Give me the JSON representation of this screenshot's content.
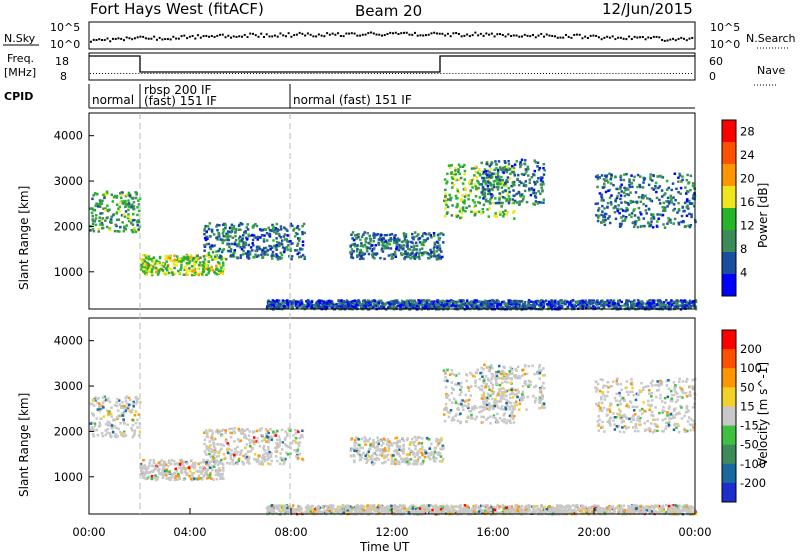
{
  "header": {
    "station": "Fort Hays West (fitACF)",
    "beam": "Beam 20",
    "date": "12/Jun/2015"
  },
  "noise_panel": {
    "left_label": "N.Sky",
    "left_ticks": [
      "10^5",
      "10^0"
    ],
    "right_ticks": [
      "10^5",
      "10^0"
    ],
    "right_label": "N.Search"
  },
  "freq_panel": {
    "label_line1": "Freq.",
    "label_line2": "[MHz]",
    "left_ticks": [
      "18",
      "8"
    ],
    "right_ticks": [
      "60",
      "0"
    ],
    "right_label": "Nave"
  },
  "cpid_panel": {
    "label": "CPID",
    "modes": [
      "normal",
      "rbsp 200 IF",
      "(fast) 151 IF",
      "normal (fast) 151 IF"
    ]
  },
  "power_panel": {
    "ylabel": "Slant Range [km]",
    "yticks": [
      "1000",
      "2000",
      "3000",
      "4000"
    ],
    "colorbar_label": "Power [dB]",
    "colorbar_ticks": [
      "4",
      "8",
      "12",
      "16",
      "20",
      "24",
      "28"
    ],
    "colors": [
      "#0000ff",
      "#1a4ea0",
      "#3c8c5a",
      "#28b428",
      "#f0e61e",
      "#ff9600",
      "#ff5000",
      "#ff0000"
    ]
  },
  "velocity_panel": {
    "ylabel": "Slant Range [km]",
    "yticks": [
      "1000",
      "2000",
      "3000",
      "4000"
    ],
    "colorbar_label": "Velocity [m s^-1]",
    "colorbar_ticks": [
      "200",
      "100",
      "50",
      "15",
      "-15",
      "-50",
      "-100",
      "-200"
    ],
    "colors": [
      "#1f2dcc",
      "#1a6aa0",
      "#3c8c5a",
      "#40c040",
      "#c8c8c8",
      "#f0d228",
      "#ff9600",
      "#ff5000",
      "#ff0000"
    ]
  },
  "x_axis": {
    "ticks": [
      "00:00",
      "04:00",
      "08:00",
      "12:00",
      "16:00",
      "20:00",
      "00:00"
    ],
    "label": "Time UT"
  },
  "chart_data": [
    {
      "type": "heatmap",
      "title": "Power",
      "xlabel": "Time UT",
      "ylabel": "Slant Range [km]",
      "xlim_hours": [
        0,
        24
      ],
      "ylim": [
        180,
        4500
      ],
      "colorbar": "Power [dB]",
      "colorbar_range": [
        0,
        30
      ],
      "echo_regions": [
        {
          "t": [
            0.0,
            2.0
          ],
          "range": [
            1900,
            2800
          ],
          "level": 12
        },
        {
          "t": [
            2.0,
            5.3
          ],
          "range": [
            950,
            1400
          ],
          "level": 16
        },
        {
          "t": [
            4.5,
            8.5
          ],
          "range": [
            1300,
            2100
          ],
          "level": 8
        },
        {
          "t": [
            10.3,
            14.0
          ],
          "range": [
            1300,
            1900
          ],
          "level": 8
        },
        {
          "t": [
            14.0,
            16.8
          ],
          "range": [
            2200,
            3400
          ],
          "level": 14
        },
        {
          "t": [
            15.5,
            18.0
          ],
          "range": [
            2500,
            3500
          ],
          "level": 8
        },
        {
          "t": [
            20.0,
            24.0
          ],
          "range": [
            2000,
            3200
          ],
          "level": 8
        },
        {
          "t": [
            7.0,
            24.0
          ],
          "range": [
            200,
            400
          ],
          "level": 6
        }
      ]
    },
    {
      "type": "heatmap",
      "title": "Velocity",
      "xlabel": "Time UT",
      "ylabel": "Slant Range [km]",
      "xlim_hours": [
        0,
        24
      ],
      "ylim": [
        180,
        4500
      ],
      "colorbar": "Velocity [m s^-1]",
      "colorbar_range": [
        -200,
        200
      ],
      "echo_regions": [
        {
          "t": [
            0.0,
            2.0
          ],
          "range": [
            1900,
            2800
          ],
          "level": 0
        },
        {
          "t": [
            2.0,
            5.3
          ],
          "range": [
            950,
            1400
          ],
          "level": -20
        },
        {
          "t": [
            4.5,
            8.5
          ],
          "range": [
            1300,
            2100
          ],
          "level": -20
        },
        {
          "t": [
            10.3,
            14.0
          ],
          "range": [
            1300,
            1900
          ],
          "level": 0
        },
        {
          "t": [
            14.0,
            16.8
          ],
          "range": [
            2200,
            3400
          ],
          "level": 0
        },
        {
          "t": [
            15.5,
            18.0
          ],
          "range": [
            2500,
            3500
          ],
          "level": 0
        },
        {
          "t": [
            20.0,
            24.0
          ],
          "range": [
            2000,
            3200
          ],
          "level": 0
        },
        {
          "t": [
            7.0,
            24.0
          ],
          "range": [
            200,
            400
          ],
          "level": -20
        }
      ]
    }
  ]
}
